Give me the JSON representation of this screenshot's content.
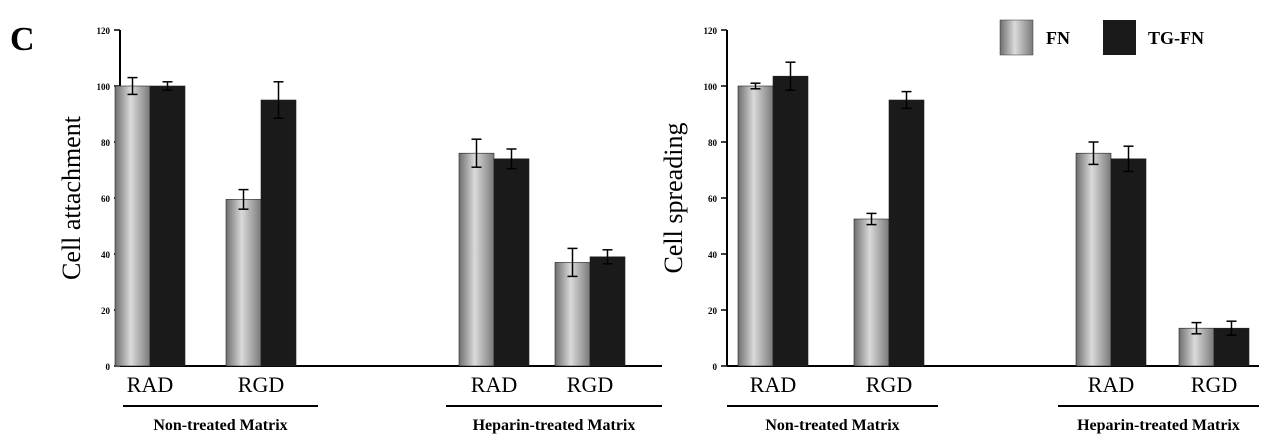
{
  "panel_label": "C",
  "legend": [
    {
      "label": "FN",
      "color_style": "gray-gradient"
    },
    {
      "label": "TG-FN",
      "color_style": "black"
    }
  ],
  "colors": {
    "fn_light": "#d6d6d6",
    "fn_dark": "#7a7a7a",
    "tgfn": "#1a1a1a",
    "axis": "#000000"
  },
  "chart_data": [
    {
      "type": "bar",
      "ylabel": "Cell attachment",
      "ylim": [
        0,
        120
      ],
      "yticks": [
        "0",
        "20",
        "40",
        "60",
        "80",
        "100",
        "120"
      ],
      "categories": [
        "RAD",
        "RGD",
        "RAD",
        "RGD"
      ],
      "groups": [
        {
          "label": "Non-treated Matrix",
          "categories": [
            0,
            1
          ]
        },
        {
          "label": "Heparin-treated Matrix",
          "categories": [
            2,
            3
          ]
        }
      ],
      "series": [
        {
          "name": "FN",
          "values": [
            100,
            59.5,
            76,
            37
          ],
          "errors": [
            3,
            3.5,
            5,
            5
          ]
        },
        {
          "name": "TG-FN",
          "values": [
            100,
            95,
            74,
            39
          ],
          "errors": [
            1.5,
            6.5,
            3.5,
            2.5
          ]
        }
      ]
    },
    {
      "type": "bar",
      "ylabel": "Cell spreading",
      "ylim": [
        0,
        120
      ],
      "yticks": [
        "0",
        "20",
        "40",
        "60",
        "80",
        "100",
        "120"
      ],
      "categories": [
        "RAD",
        "RGD",
        "RAD",
        "RGD"
      ],
      "groups": [
        {
          "label": "Non-treated Matrix",
          "categories": [
            0,
            1
          ]
        },
        {
          "label": "Heparin-treated Matrix",
          "categories": [
            2,
            3
          ]
        }
      ],
      "series": [
        {
          "name": "FN",
          "values": [
            100,
            52.5,
            76,
            13.5
          ],
          "errors": [
            1,
            2,
            4,
            2
          ]
        },
        {
          "name": "TG-FN",
          "values": [
            103.5,
            95,
            74,
            13.5
          ],
          "errors": [
            5,
            3,
            4.5,
            2.5
          ]
        }
      ]
    }
  ]
}
